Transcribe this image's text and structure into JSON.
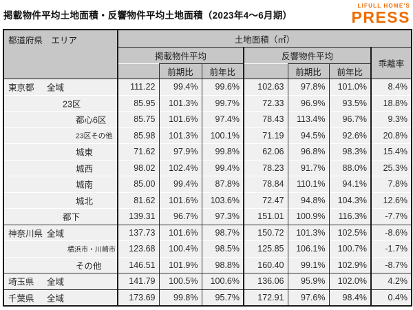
{
  "page": {
    "title": "掲載物件平均土地面積・反響物件平均土地面積（2023年4～6月期）",
    "logo": {
      "top": "LIFULL HOME'S",
      "main": "PRESS"
    },
    "accent_color": "#ed6c00"
  },
  "table": {
    "corner_header": "都道府県　エリア",
    "top_header": "土地面積（㎡）",
    "group_headers": [
      "掲載物件平均",
      "反響物件平均"
    ],
    "sub_headers": [
      "前期比",
      "前年比"
    ],
    "deviation_header": "乖離率",
    "colors": {
      "header_bg": "#c7c7c7",
      "row_bg": "#f0f0f0"
    },
    "rows": [
      {
        "pref": "東京都",
        "area": "全域",
        "level": "1",
        "group_start": false,
        "values": [
          "111.22",
          "99.4%",
          "99.6%",
          "102.63",
          "97.8%",
          "101.0%",
          "8.4%"
        ]
      },
      {
        "pref": "",
        "area": "23区",
        "level": "2",
        "group_start": false,
        "values": [
          "85.95",
          "101.3%",
          "99.7%",
          "72.33",
          "96.9%",
          "93.5%",
          "18.8%"
        ]
      },
      {
        "pref": "",
        "area": "都心6区",
        "level": "3",
        "group_start": false,
        "values": [
          "85.75",
          "101.6%",
          "97.4%",
          "78.43",
          "113.4%",
          "96.7%",
          "9.3%"
        ]
      },
      {
        "pref": "",
        "area": "23区その他",
        "level": "3s",
        "group_start": false,
        "values": [
          "85.98",
          "101.3%",
          "100.1%",
          "71.19",
          "94.5%",
          "92.6%",
          "20.8%"
        ]
      },
      {
        "pref": "",
        "area": "城東",
        "level": "3",
        "group_start": false,
        "values": [
          "71.62",
          "97.9%",
          "99.8%",
          "62.06",
          "96.8%",
          "98.3%",
          "15.4%"
        ]
      },
      {
        "pref": "",
        "area": "城西",
        "level": "3",
        "group_start": false,
        "values": [
          "98.02",
          "102.4%",
          "99.4%",
          "78.23",
          "91.7%",
          "88.0%",
          "25.3%"
        ]
      },
      {
        "pref": "",
        "area": "城南",
        "level": "3",
        "group_start": false,
        "values": [
          "85.00",
          "99.4%",
          "87.8%",
          "78.84",
          "110.1%",
          "94.1%",
          "7.8%"
        ]
      },
      {
        "pref": "",
        "area": "城北",
        "level": "3",
        "group_start": false,
        "values": [
          "81.62",
          "101.6%",
          "103.6%",
          "72.47",
          "94.8%",
          "104.3%",
          "12.6%"
        ]
      },
      {
        "pref": "",
        "area": "都下",
        "level": "2",
        "group_start": false,
        "values": [
          "139.31",
          "96.7%",
          "97.3%",
          "151.01",
          "100.9%",
          "116.3%",
          "-7.7%"
        ]
      },
      {
        "pref": "神奈川県",
        "area": "全域",
        "level": "1",
        "group_start": true,
        "values": [
          "137.73",
          "101.6%",
          "98.7%",
          "150.72",
          "101.3%",
          "102.5%",
          "-8.6%"
        ]
      },
      {
        "pref": "",
        "area": "横浜市・川崎市",
        "level": "2s",
        "group_start": false,
        "values": [
          "123.68",
          "100.4%",
          "98.5%",
          "125.85",
          "106.1%",
          "100.7%",
          "-1.7%"
        ]
      },
      {
        "pref": "",
        "area": "その他",
        "level": "3",
        "group_start": false,
        "values": [
          "146.51",
          "101.9%",
          "98.8%",
          "160.40",
          "99.1%",
          "102.9%",
          "-8.7%"
        ]
      },
      {
        "pref": "埼玉県",
        "area": "全域",
        "level": "1",
        "group_start": true,
        "values": [
          "141.79",
          "100.5%",
          "100.6%",
          "136.06",
          "95.9%",
          "102.0%",
          "4.2%"
        ]
      },
      {
        "pref": "千葉県",
        "area": "全域",
        "level": "1",
        "group_start": true,
        "values": [
          "173.69",
          "99.8%",
          "95.7%",
          "172.91",
          "97.6%",
          "98.4%",
          "0.4%"
        ]
      }
    ]
  }
}
